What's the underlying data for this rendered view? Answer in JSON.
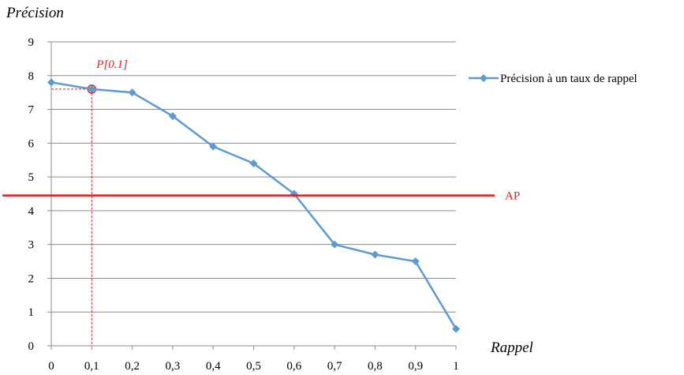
{
  "chart_data": {
    "type": "line",
    "ylabel": "Précision",
    "xlabel": "Rappel",
    "x": [
      0,
      0.1,
      0.2,
      0.3,
      0.4,
      0.5,
      0.6,
      0.7,
      0.8,
      0.9,
      1
    ],
    "x_tick_labels": [
      "0",
      "0,1",
      "0,2",
      "0,3",
      "0,4",
      "0,5",
      "0,6",
      "0,7",
      "0,8",
      "0,9",
      "1"
    ],
    "y_tick_labels": [
      "0",
      "1",
      "2",
      "3",
      "4",
      "5",
      "6",
      "7",
      "8",
      "9"
    ],
    "ylim": [
      0,
      9
    ],
    "xlim": [
      0,
      1
    ],
    "grid": "horizontal",
    "legend_position": "right",
    "series": [
      {
        "name": "Précision à un taux de rappel",
        "color": "#5b9bd5",
        "marker": "diamond",
        "values": [
          7.8,
          7.6,
          7.5,
          6.8,
          5.9,
          5.4,
          4.5,
          3.0,
          2.7,
          2.5,
          0.5
        ]
      }
    ],
    "reference_line": {
      "label": "AP",
      "y": 4.45,
      "color": "#e31a1c"
    },
    "annotation": {
      "label": "P[0.1]",
      "x": 0.1,
      "y": 7.6,
      "color": "#e31a1c"
    }
  }
}
